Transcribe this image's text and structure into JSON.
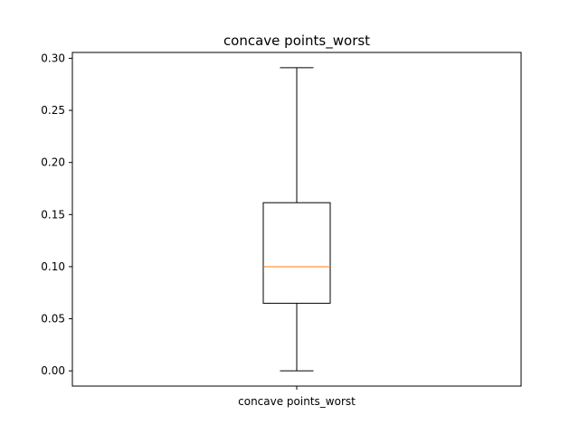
{
  "chart_data": {
    "type": "box",
    "title": "concave points_worst",
    "xlabel": "",
    "ylabel": "",
    "categories": [
      "concave points_worst"
    ],
    "ylim": [
      -0.0146,
      0.3056
    ],
    "yticks": [
      "0.00",
      "0.05",
      "0.10",
      "0.15",
      "0.20",
      "0.25",
      "0.30"
    ],
    "ytick_values": [
      0.0,
      0.05,
      0.1,
      0.15,
      0.2,
      0.25,
      0.3
    ],
    "grid": false,
    "box": {
      "whisker_low": 0.0,
      "q1": 0.0649,
      "median": 0.0999,
      "q3": 0.1614,
      "whisker_high": 0.291
    },
    "colors": {
      "box": "#000000",
      "median": "#ff7f0e"
    }
  }
}
